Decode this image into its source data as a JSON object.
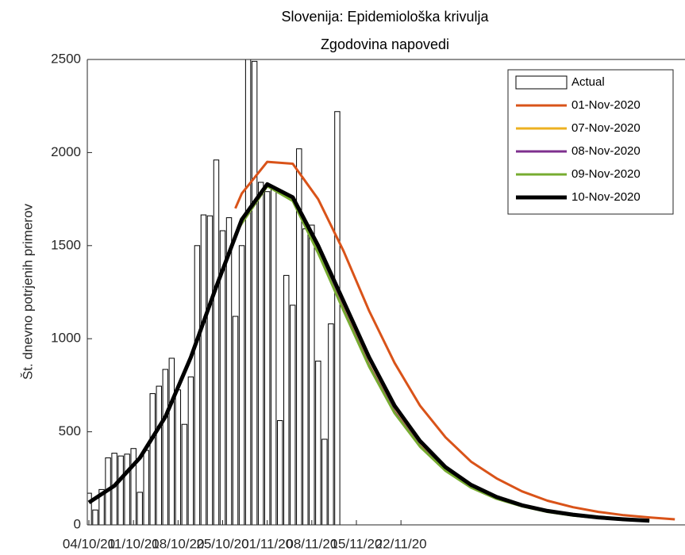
{
  "chart_data": {
    "type": "bar",
    "title": [
      "Slovenija: Epidemiološka krivulja",
      "Zgodovina napovedi"
    ],
    "ylabel": "Št. dnevno potrjenih primerov",
    "xlim": [
      -0.25,
      93.6
    ],
    "ylim": [
      0,
      2500
    ],
    "yticks": [
      0,
      500,
      1000,
      1500,
      2000,
      2500
    ],
    "xticks": [
      {
        "value": 0,
        "label": "04/10/20"
      },
      {
        "value": 7,
        "label": "11/10/20"
      },
      {
        "value": 14,
        "label": "18/10/20"
      },
      {
        "value": 21,
        "label": "25/10/20"
      },
      {
        "value": 28,
        "label": "01/11/20"
      },
      {
        "value": 35,
        "label": "08/11/20"
      },
      {
        "value": 42,
        "label": "15/11/20"
      },
      {
        "value": 49,
        "label": "22/11/20"
      }
    ],
    "bars": {
      "name": "Actual",
      "color": "#ffffff",
      "values": [
        170,
        80,
        190,
        360,
        385,
        370,
        380,
        410,
        175,
        400,
        705,
        745,
        835,
        895,
        725,
        540,
        795,
        1500,
        1665,
        1660,
        1960,
        1580,
        1650,
        1120,
        1500,
        2600,
        2490,
        1840,
        1790,
        1800,
        560,
        1340,
        1180,
        2020,
        1590,
        1610,
        880,
        460,
        1080,
        2220
      ]
    },
    "legend": "upper right",
    "series": [
      {
        "name": "01-Nov-2020",
        "color": "#D95319",
        "width": 3,
        "x": [
          23,
          24,
          28,
          32,
          36,
          40,
          44,
          48,
          52,
          56,
          60,
          64,
          68,
          72,
          76,
          80,
          84,
          88,
          92
        ],
        "values": [
          1700,
          1780,
          1950,
          1940,
          1750,
          1470,
          1150,
          870,
          640,
          470,
          340,
          250,
          180,
          130,
          95,
          70,
          52,
          40,
          30
        ]
      },
      {
        "name": "07-Nov-2020",
        "color": "#EDB120",
        "width": 3,
        "x": [
          23,
          24,
          28,
          32,
          36,
          40,
          44,
          48,
          52,
          56,
          60,
          64,
          68,
          72,
          76,
          80,
          84,
          88
        ],
        "values": [
          1560,
          1620,
          1820,
          1745,
          1470,
          1160,
          860,
          610,
          425,
          295,
          205,
          143,
          102,
          72,
          52,
          38,
          28,
          21
        ]
      },
      {
        "name": "08-Nov-2020",
        "color": "#7E2F8E",
        "width": 3,
        "x": [
          23,
          24,
          28,
          32,
          36,
          40,
          44,
          48,
          52,
          56,
          60,
          64,
          68,
          72,
          76,
          80,
          84,
          88
        ],
        "values": [
          1560,
          1620,
          1820,
          1742,
          1465,
          1155,
          855,
          605,
          422,
          292,
          202,
          141,
          101,
          71,
          51,
          37,
          27,
          20
        ]
      },
      {
        "name": "09-Nov-2020",
        "color": "#77AC30",
        "width": 3,
        "x": [
          23,
          24,
          28,
          32,
          36,
          40,
          44,
          48,
          52,
          56,
          60,
          64,
          68,
          72,
          76,
          80,
          84,
          88
        ],
        "values": [
          1560,
          1620,
          1820,
          1740,
          1460,
          1150,
          850,
          600,
          420,
          290,
          200,
          140,
          100,
          70,
          50,
          37,
          27,
          20
        ]
      },
      {
        "name": "10-Nov-2020",
        "color": "#000000",
        "width": 5,
        "x": [
          0,
          4,
          8,
          12,
          16,
          20,
          24,
          28,
          32,
          36,
          40,
          44,
          48,
          52,
          56,
          60,
          64,
          68,
          72,
          76,
          80,
          84,
          88
        ],
        "values": [
          120,
          210,
          360,
          580,
          900,
          1280,
          1640,
          1830,
          1760,
          1500,
          1200,
          900,
          640,
          450,
          310,
          215,
          150,
          105,
          75,
          55,
          40,
          30,
          22
        ]
      }
    ]
  }
}
